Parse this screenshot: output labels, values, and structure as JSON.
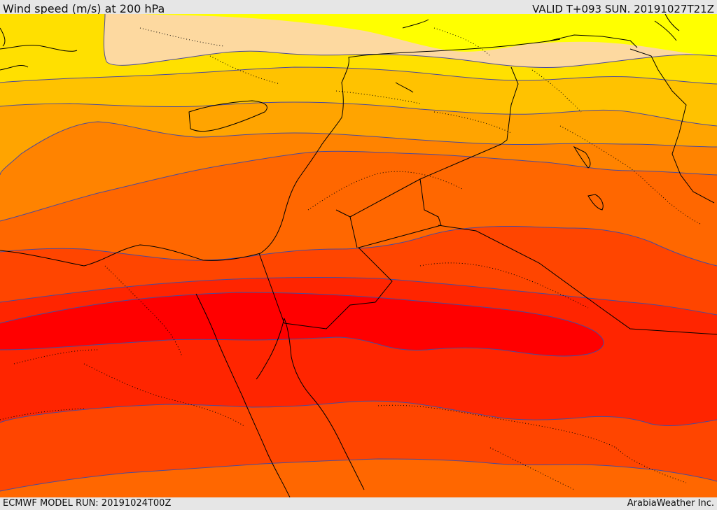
{
  "header": {
    "title": "Wind speed (m/s) at 200 hPa",
    "valid_time": "VALID T+093 SUN. 20191027T21Z"
  },
  "footer": {
    "model_run": "ECMWF MODEL RUN: 20191024T00Z",
    "credit": "ArabiaWeather Inc."
  },
  "map": {
    "variable": "wind speed",
    "units": "m/s",
    "pressure_level_hpa": 200,
    "colors": {
      "band_light": "#fdd9a0",
      "band_yellow": "#ffff00",
      "band_gold": "#ffe000",
      "band_amber": "#ffc200",
      "band_orange_light": "#ffa400",
      "band_orange": "#ff8300",
      "band_orange_dark": "#ff6700",
      "band_red_orange": "#ff4500",
      "band_red_light": "#ff2500",
      "band_red_core": "#ff0000",
      "contour": "#4a4a9c",
      "coastline": "#000000",
      "borders": "#000000"
    }
  }
}
